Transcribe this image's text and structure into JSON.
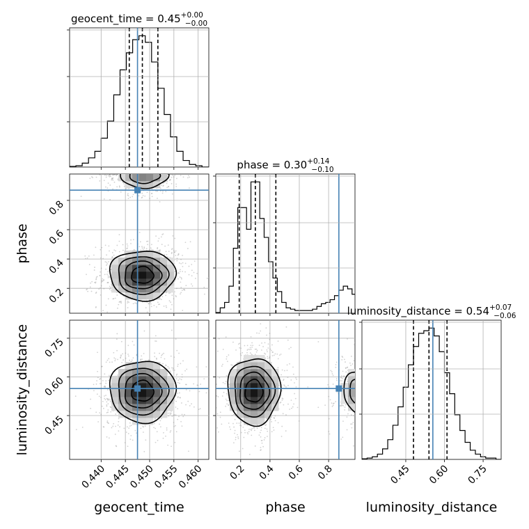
{
  "chart_data": {
    "type": "corner",
    "colors": {
      "truth": "#4682b4",
      "histogram": "#000000",
      "contour": "#000000",
      "grid": "#b0b0b0"
    },
    "grid": true,
    "parameters": [
      {
        "key": "geocent_time",
        "axis_label": "geocent_time",
        "title_text": "geocent_time = 0.45",
        "title_sup": "+0.00",
        "title_sub": "−0.00",
        "median": 0.4485,
        "quantiles": [
          0.4458,
          0.4485,
          0.4517
        ],
        "truth": 0.4475,
        "range": [
          0.4335,
          0.4622
        ],
        "ticks": [
          0.44,
          0.445,
          0.45,
          0.455,
          0.46
        ],
        "tick_labels": [
          "0.440",
          "0.445",
          "0.450",
          "0.455",
          "0.460"
        ],
        "hist_bins": [
          0.4335,
          0.4348,
          0.4361,
          0.4374,
          0.4387,
          0.44,
          0.4413,
          0.4426,
          0.4439,
          0.4452,
          0.4465,
          0.4478,
          0.4491,
          0.4504,
          0.4517,
          0.453,
          0.4543,
          0.4556,
          0.4569,
          0.4582,
          0.4595,
          0.4608,
          0.4622
        ],
        "hist_values": [
          0.5,
          1,
          3,
          7,
          12,
          22,
          35,
          55,
          74,
          87,
          97,
          100,
          95,
          80,
          60,
          40,
          23,
          12,
          5,
          2,
          1,
          0
        ]
      },
      {
        "key": "phase",
        "axis_label": "phase",
        "title_text": "phase = 0.30",
        "title_sup": "+0.14",
        "title_sub": "−0.10",
        "median": 0.3,
        "quantiles": [
          0.19,
          0.3,
          0.44
        ],
        "truth": 0.87,
        "range": [
          0.03,
          0.98
        ],
        "ticks": [
          0.2,
          0.4,
          0.6,
          0.8
        ],
        "tick_labels": [
          "0.2",
          "0.4",
          "0.6",
          "0.8"
        ],
        "hist_bins": [
          0.03,
          0.06,
          0.09,
          0.12,
          0.15,
          0.18,
          0.21,
          0.24,
          0.27,
          0.3,
          0.33,
          0.36,
          0.39,
          0.42,
          0.45,
          0.48,
          0.51,
          0.54,
          0.57,
          0.6,
          0.63,
          0.66,
          0.69,
          0.72,
          0.75,
          0.78,
          0.81,
          0.84,
          0.87,
          0.9,
          0.93,
          0.96,
          0.98
        ],
        "hist_values": [
          0.5,
          4,
          8,
          20,
          48,
          78,
          78,
          62,
          97,
          97,
          70,
          56,
          38,
          26,
          16,
          8,
          4,
          3,
          2,
          2,
          2,
          2,
          3,
          5,
          7,
          8,
          10,
          13,
          17,
          20,
          18,
          14
        ]
      },
      {
        "key": "luminosity_distance",
        "axis_label": "luminosity_distance",
        "title_text": "luminosity_distance = 0.54",
        "title_sup": "+0.07",
        "title_sub": "−0.06",
        "median": 0.54,
        "quantiles": [
          0.48,
          0.54,
          0.61
        ],
        "truth": 0.555,
        "range": [
          0.28,
          0.82
        ],
        "ticks": [
          0.45,
          0.6,
          0.75
        ],
        "tick_labels": [
          "0.45",
          "0.60",
          "0.75"
        ],
        "hist_bins": [
          0.28,
          0.3,
          0.32,
          0.34,
          0.36,
          0.38,
          0.4,
          0.42,
          0.44,
          0.46,
          0.48,
          0.5,
          0.52,
          0.54,
          0.56,
          0.58,
          0.6,
          0.62,
          0.64,
          0.66,
          0.68,
          0.7,
          0.72,
          0.74,
          0.76,
          0.78,
          0.8,
          0.82
        ],
        "hist_values": [
          0.5,
          1,
          2,
          4,
          8,
          15,
          26,
          40,
          55,
          72,
          86,
          96,
          98,
          100,
          94,
          82,
          66,
          50,
          34,
          22,
          13,
          7,
          4,
          2,
          1,
          1,
          0
        ]
      }
    ],
    "pairs": [
      {
        "x": "geocent_time",
        "y": "phase",
        "modes": [
          {
            "cx": 0.4485,
            "cy": 0.29,
            "sx": 0.0034,
            "sy": 0.085,
            "w": 1.0
          },
          {
            "cx": 0.4489,
            "cy": 0.97,
            "sx": 0.003,
            "sy": 0.05,
            "w": 0.55
          }
        ]
      },
      {
        "x": "geocent_time",
        "y": "luminosity_distance",
        "modes": [
          {
            "cx": 0.4485,
            "cy": 0.545,
            "sx": 0.0034,
            "sy": 0.06,
            "w": 1.0
          }
        ]
      },
      {
        "x": "phase",
        "y": "luminosity_distance",
        "modes": [
          {
            "cx": 0.29,
            "cy": 0.545,
            "sx": 0.09,
            "sy": 0.065,
            "w": 1.0
          },
          {
            "cx": 1.0,
            "cy": 0.545,
            "sx": 0.06,
            "sy": 0.05,
            "w": 0.5
          }
        ]
      }
    ]
  }
}
